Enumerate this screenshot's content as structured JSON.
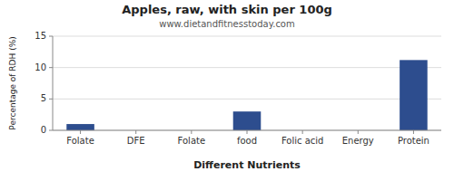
{
  "chart_data": {
    "type": "bar",
    "title": "Apples, raw, with skin per 100g",
    "subtitle": "www.dietandfitnesstoday.com",
    "xlabel": "Different Nutrients",
    "ylabel": "Percentage of RDH (%)",
    "categories": [
      "Folate",
      "DFE",
      "Folate",
      "food",
      "Folic acid",
      "Energy",
      "Protein"
    ],
    "values": [
      1.0,
      0.0,
      0.0,
      3.0,
      0.0,
      0.0,
      11.2
    ],
    "color": "#2d4d8e",
    "ylim": [
      0,
      15
    ],
    "yticks": [
      0,
      5,
      10,
      15
    ],
    "grid": true
  }
}
